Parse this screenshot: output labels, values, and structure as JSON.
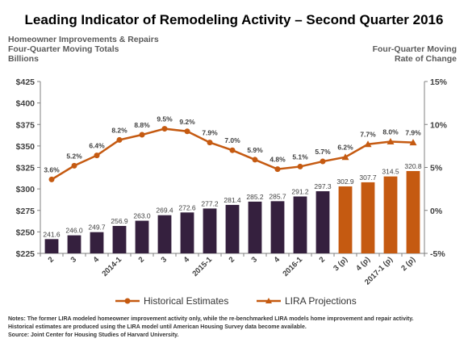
{
  "title": "Leading Indicator of Remodeling Activity – Second Quarter 2016",
  "left_axis_title": [
    "Homeowner Improvements & Repairs",
    "Four-Quarter Moving Totals",
    "Billions"
  ],
  "right_axis_title": [
    "Four-Quarter Moving",
    "Rate of Change"
  ],
  "colors": {
    "historical_bar": "#35203e",
    "projection": "#c55a11"
  },
  "legend": {
    "historical": "Historical Estimates",
    "projection": "LIRA Projections"
  },
  "notes": [
    "Notes: The former LIRA modeled homeowner improvement activity only, while the re-benchmarked LIRA models home improvement and repair activity.",
    "Historical estimates are produced using the LIRA model until American Housing Survey data become available.",
    "Source: Joint Center for Housing Studies of Harvard University."
  ],
  "chart_data": {
    "type": "bar",
    "categories": [
      "2",
      "3",
      "4",
      "2014-1",
      "2",
      "3",
      "4",
      "2015-1",
      "2",
      "3",
      "4",
      "2016-1",
      "2",
      "3 (p)",
      "4 (p)",
      "2017-1 (p)",
      "2 (p)"
    ],
    "series": [
      {
        "name": "Historical Estimates",
        "type": "bar",
        "axis": "left",
        "values": [
          241.6,
          246.0,
          249.7,
          256.9,
          263.0,
          269.4,
          272.6,
          277.2,
          281.4,
          285.2,
          285.7,
          291.2,
          297.3,
          null,
          null,
          null,
          null
        ],
        "labels": [
          "241.6",
          "246.0",
          "249.7",
          "256.9",
          "263.0",
          "269.4",
          "272.6",
          "277.2",
          "281.4",
          "285.2",
          "285.7",
          "291.2",
          "297.3",
          "",
          "",
          "",
          ""
        ]
      },
      {
        "name": "LIRA Projections",
        "type": "bar",
        "axis": "left",
        "values": [
          null,
          null,
          null,
          null,
          null,
          null,
          null,
          null,
          null,
          null,
          null,
          null,
          null,
          302.9,
          307.7,
          314.5,
          320.8
        ],
        "labels": [
          "",
          "",
          "",
          "",
          "",
          "",
          "",
          "",
          "",
          "",
          "",
          "",
          "",
          "302.9",
          "307.7",
          "314.5",
          "320.8"
        ]
      },
      {
        "name": "Historical Estimates",
        "type": "line",
        "axis": "right",
        "values": [
          3.6,
          5.2,
          6.4,
          8.2,
          8.8,
          9.5,
          9.2,
          7.9,
          7.0,
          5.9,
          4.8,
          5.1,
          5.7,
          null,
          null,
          null,
          null
        ],
        "labels": [
          "3.6%",
          "5.2%",
          "6.4%",
          "8.2%",
          "8.8%",
          "9.5%",
          "9.2%",
          "7.9%",
          "7.0%",
          "5.9%",
          "4.8%",
          "5.1%",
          "5.7%",
          "",
          "",
          "",
          ""
        ]
      },
      {
        "name": "LIRA Projections",
        "type": "line",
        "axis": "right",
        "values": [
          null,
          null,
          null,
          null,
          null,
          null,
          null,
          null,
          null,
          null,
          null,
          null,
          5.7,
          6.2,
          7.7,
          8.0,
          7.9
        ],
        "labels": [
          "",
          "",
          "",
          "",
          "",
          "",
          "",
          "",
          "",
          "",
          "",
          "",
          "",
          "6.2%",
          "7.7%",
          "8.0%",
          "7.9%"
        ]
      }
    ],
    "y_left": {
      "ylim": [
        225,
        425
      ],
      "ticks": [
        225,
        250,
        275,
        300,
        325,
        350,
        375,
        400,
        425
      ],
      "tick_labels": [
        "$225",
        "$250",
        "$275",
        "$300",
        "$325",
        "$350",
        "$375",
        "$400",
        "$425"
      ]
    },
    "y_right": {
      "ylim": [
        -5,
        15
      ],
      "ticks": [
        -5,
        0,
        5,
        10,
        15
      ],
      "tick_labels": [
        "-5%",
        "0%",
        "5%",
        "10%",
        "15%"
      ]
    },
    "grid": false,
    "legend_position": "bottom"
  }
}
